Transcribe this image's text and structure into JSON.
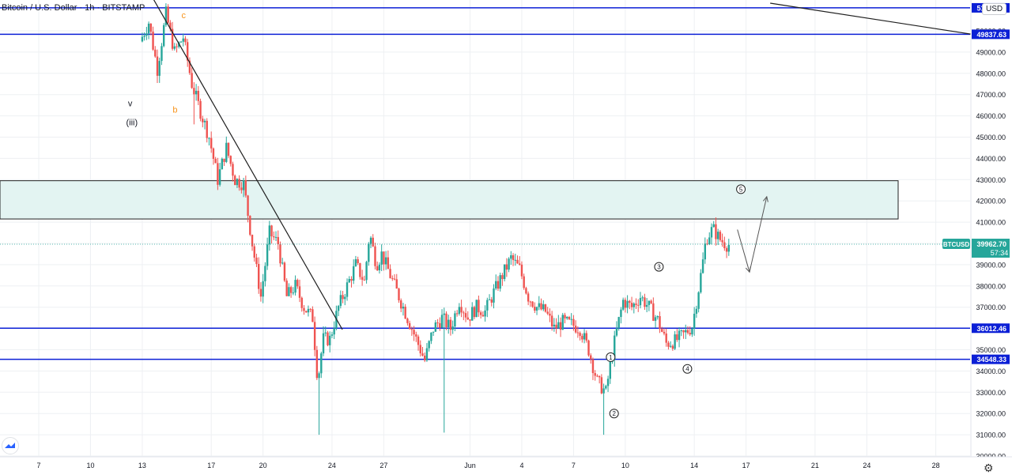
{
  "header": {
    "symbol_title": "Bitcoin / U.S. Dollar",
    "interval": "1h",
    "exchange": "BITSTAMP",
    "currency_badge": "USD"
  },
  "chart_data": {
    "type": "candlestick",
    "y_axis": {
      "range": [
        30000,
        51500
      ],
      "ticks": [
        30000,
        31000,
        32000,
        33000,
        34000,
        35000,
        36000,
        37000,
        38000,
        39000,
        40000,
        41000,
        42000,
        43000,
        44000,
        45000,
        46000,
        47000,
        48000,
        49000,
        50000
      ],
      "tick_labels": [
        "30000.00",
        "31000.00",
        "32000.00",
        "33000.00",
        "34000.00",
        "35000.00",
        "36000.00",
        "37000.00",
        "38000.00",
        "39000.00",
        "40000.00",
        "41000.00",
        "42000.00",
        "43000.00",
        "44000.00",
        "45000.00",
        "46000.00",
        "47000.00",
        "48000.00",
        "49000.00",
        "50000.00"
      ]
    },
    "x_axis": {
      "tick_labels": [
        "7",
        "10",
        "13",
        "17",
        "20",
        "24",
        "27",
        "Jun",
        "4",
        "7",
        "10",
        "14",
        "17",
        "21",
        "24",
        "28"
      ],
      "tick_day_index": [
        0,
        3,
        6,
        10,
        13,
        17,
        20,
        25,
        28,
        31,
        34,
        38,
        41,
        45,
        48,
        52
      ]
    },
    "current_price": {
      "symbol": "BTCUSD",
      "price": "39962.70",
      "countdown": "57:34",
      "value": 39962.7
    },
    "horizontal_levels": [
      {
        "label": "51080.61",
        "value": 51080.61
      },
      {
        "label": "49837.63",
        "value": 49837.63
      },
      {
        "label": "36012.46",
        "value": 36012.46
      },
      {
        "label": "34548.33",
        "value": 34548.33
      }
    ],
    "resistance_zone": {
      "low": 41150,
      "high": 42950
    },
    "trendlines": [
      {
        "from": [
          6.5,
          51700
        ],
        "to": [
          17.6,
          35950
        ]
      },
      {
        "from": [
          42.4,
          51300
        ],
        "to": [
          66.0,
          48350
        ]
      }
    ],
    "projection_path": [
      [
        40.5,
        40650
      ],
      [
        41.2,
        38650
      ],
      [
        42.2,
        42200
      ]
    ],
    "wave_labels": [
      {
        "text": "c",
        "color": "#f7931a",
        "circled": false,
        "x": 8.4,
        "y": 50600
      },
      {
        "text": "v",
        "color": "#131722",
        "circled": false,
        "x": 5.3,
        "y": 46450
      },
      {
        "text": "b",
        "color": "#f7931a",
        "circled": false,
        "x": 7.9,
        "y": 46150
      },
      {
        "text": "(iii)",
        "color": "#131722",
        "circled": false,
        "x": 5.4,
        "y": 45550
      },
      {
        "text": "1",
        "color": "#131722",
        "circled": true,
        "x": 33.15,
        "y": 34650
      },
      {
        "text": "2",
        "color": "#131722",
        "circled": true,
        "x": 33.35,
        "y": 32000
      },
      {
        "text": "3",
        "color": "#131722",
        "circled": true,
        "x": 35.95,
        "y": 38900
      },
      {
        "text": "4",
        "color": "#131722",
        "circled": true,
        "x": 37.6,
        "y": 34100
      },
      {
        "text": "5",
        "color": "#131722",
        "circled": true,
        "x": 40.7,
        "y": 42550
      }
    ],
    "price_path": {
      "start_day": 6.0,
      "step_days": 0.125,
      "anchors": [
        [
          6.0,
          49500
        ],
        [
          6.5,
          50400
        ],
        [
          7.0,
          48200
        ],
        [
          7.5,
          50800
        ],
        [
          8.0,
          49000
        ],
        [
          8.5,
          49700
        ],
        [
          9.0,
          47500
        ],
        [
          9.5,
          46200
        ],
        [
          10.0,
          45000
        ],
        [
          10.5,
          43000
        ],
        [
          11.0,
          44500
        ],
        [
          11.5,
          43000
        ],
        [
          12.0,
          42800
        ],
        [
          12.5,
          40000
        ],
        [
          13.0,
          37500
        ],
        [
          13.5,
          40500
        ],
        [
          14.0,
          40000
        ],
        [
          14.5,
          37500
        ],
        [
          15.0,
          38000
        ],
        [
          15.5,
          37000
        ],
        [
          16.0,
          36500
        ],
        [
          16.3,
          33500
        ],
        [
          16.6,
          35500
        ],
        [
          17.0,
          35500
        ],
        [
          17.5,
          37000
        ],
        [
          18.0,
          38000
        ],
        [
          18.5,
          39000
        ],
        [
          19.0,
          38200
        ],
        [
          19.3,
          40500
        ],
        [
          19.7,
          39000
        ],
        [
          20.0,
          39500
        ],
        [
          20.5,
          38500
        ],
        [
          21.0,
          37500
        ],
        [
          21.5,
          36500
        ],
        [
          22.0,
          35500
        ],
        [
          22.5,
          34500
        ],
        [
          23.0,
          36000
        ],
        [
          23.5,
          36500
        ],
        [
          24.0,
          36000
        ],
        [
          24.5,
          37300
        ],
        [
          25.0,
          36500
        ],
        [
          25.5,
          37000
        ],
        [
          26.0,
          36800
        ],
        [
          26.5,
          37700
        ],
        [
          27.0,
          38500
        ],
        [
          27.5,
          39300
        ],
        [
          28.0,
          38800
        ],
        [
          28.5,
          37500
        ],
        [
          29.0,
          37000
        ],
        [
          29.5,
          36800
        ],
        [
          30.0,
          36000
        ],
        [
          30.5,
          36300
        ],
        [
          31.0,
          36200
        ],
        [
          31.5,
          36000
        ],
        [
          32.0,
          35000
        ],
        [
          32.5,
          33500
        ],
        [
          33.0,
          33000
        ],
        [
          33.3,
          34500
        ],
        [
          33.6,
          35800
        ],
        [
          34.0,
          37300
        ],
        [
          34.5,
          37000
        ],
        [
          35.0,
          37500
        ],
        [
          35.5,
          37000
        ],
        [
          36.0,
          36400
        ],
        [
          36.5,
          35300
        ],
        [
          37.0,
          35400
        ],
        [
          37.5,
          35700
        ],
        [
          38.0,
          36100
        ],
        [
          38.3,
          37500
        ],
        [
          38.6,
          39000
        ],
        [
          38.8,
          40200
        ],
        [
          39.2,
          40700
        ],
        [
          39.6,
          40200
        ],
        [
          40.0,
          39950
        ]
      ]
    }
  },
  "colors": {
    "up_candle": "#26a69a",
    "down_candle": "#ef5350",
    "level_line": "#0b1fd6",
    "level_label_bg": "#0b1fd6",
    "zone_fill": "#e3f4f2",
    "price_label_bg": "#26a69a",
    "grid": "#eef0f3"
  }
}
